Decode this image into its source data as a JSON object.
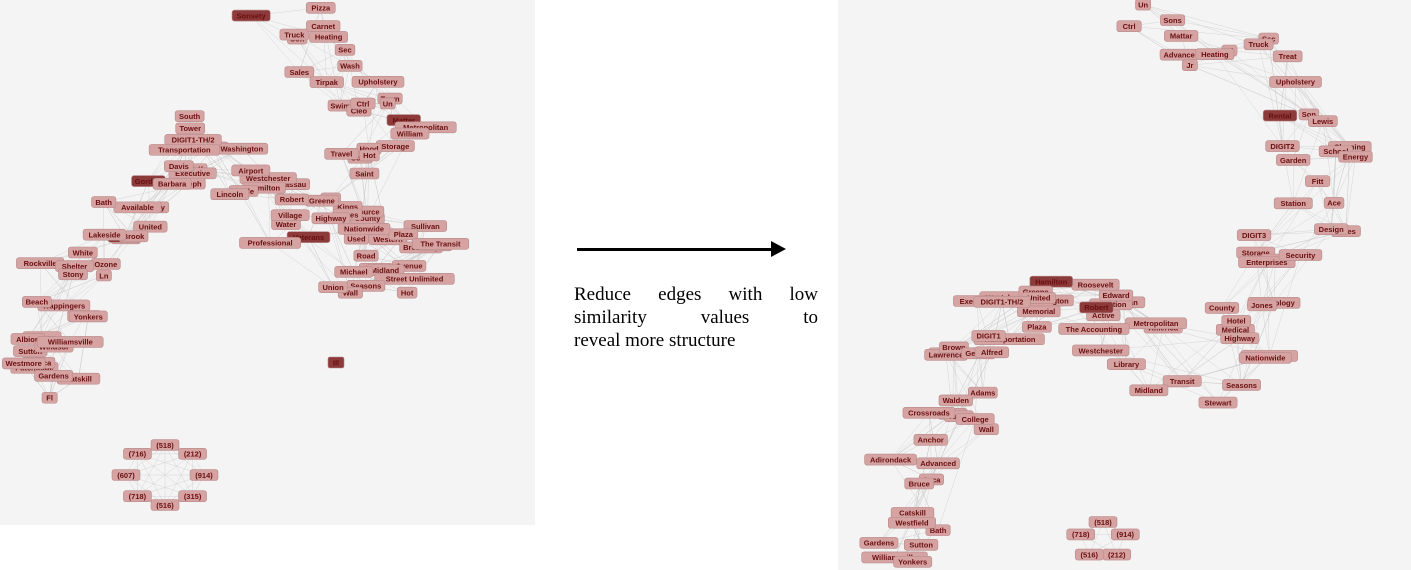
{
  "caption": {
    "line1": "Reduce edges with low",
    "line2": "similarity values to",
    "line3": "reveal more structure"
  },
  "colors": {
    "node_fill": "#d6a3a3",
    "node_fill_dark": "#8c3a3a",
    "node_text": "#6a0f0f",
    "edge": "#c9c9c9",
    "arrow": "#000000"
  },
  "left_graph": {
    "nodes": [
      "Son",
      "Sonsety",
      "Pizza",
      "Truck",
      "Carnet",
      "Sales",
      "Heating",
      "Sec",
      "Tirpak",
      "Wash",
      "Swim",
      "Cleo",
      "Upholstery",
      "Town",
      "Mattar",
      "Ctrl",
      "Un",
      "Metropolitan",
      "Storage",
      "William",
      "Hood",
      "Saint",
      "Sons",
      "Travel",
      "Hot",
      "Old",
      "DIGIT2",
      "County",
      "Resource",
      "Used",
      "Kings",
      "Jones",
      "Western",
      "Road",
      "Sullivan",
      "Plaza",
      "DIGIT1",
      "Avenue",
      "Broadway",
      "Midland",
      "Middle",
      "The Transit",
      "Street Unlimited",
      "Hot",
      "Seasons",
      "Wall",
      "Union",
      "Michael",
      "Nationwide",
      "Highway",
      "Veterans",
      "Water",
      "Village",
      "Greene",
      "Professional",
      "Nassau",
      "Westchester",
      "Hamilton",
      "Robert",
      "Apple",
      "Lincoln",
      "Airport",
      "Woods",
      "Wolf",
      "South",
      "Tower",
      "Washington",
      "DIGIT1-TH/2",
      "Executive",
      "Transportation",
      "Gordon",
      "Davis",
      "Joseph",
      "Anthony",
      "Barbara",
      "Available",
      "United",
      "Bruce",
      "George",
      "Bath",
      "Brook",
      "Lakeside",
      "Ozone",
      "White",
      "Ln",
      "Rockville",
      "Wappingers",
      "Shelter",
      "Stony",
      "Beach",
      "College",
      "Hudson",
      "Yonkers",
      "Albion",
      "Sutton",
      "Patchogue",
      "Windsor",
      "Williamsville",
      "Seneca",
      "Catskill",
      "Westmore",
      "Gardens",
      "Fl"
    ],
    "isolated_node": "Ill",
    "area_codes": [
      "(518)",
      "(212)",
      "(914)",
      "(315)",
      "(516)",
      "(718)",
      "(607)",
      "(716)"
    ]
  },
  "right_graph": {
    "nodes": [
      "Advance",
      "Ctrl",
      "Mattar",
      "Un",
      "Bl",
      "Sons",
      "Jr",
      "Heating",
      "Sec",
      "Truck",
      "Treat",
      "Son",
      "Rental",
      "Upholstery",
      "Lewis",
      "DIGIT2",
      "Cleaning",
      "School",
      "Garden",
      "Station",
      "Energy",
      "Fitt",
      "Ace",
      "Sales",
      "Design",
      "DIGIT3",
      "Storage",
      "World",
      "Enterprises",
      "Security",
      "Technology",
      "County",
      "Medical",
      "Jones",
      "Hotel",
      "Consultants",
      "Nationwide",
      "Seasons",
      "Highway",
      "Stewart",
      "Road",
      "Transit",
      "Midland",
      "America",
      "Library",
      "Westchester",
      "Metropolitan",
      "Sullivan",
      "Junction",
      "The Accounting",
      "Active",
      "Edward",
      "Robert",
      "Roosevelt",
      "Hamilton",
      "Westchester",
      "Plaza",
      "Greene",
      "Memorial",
      "Washington",
      "Transportation",
      "United",
      "Executive",
      "DIGIT1-TH/2",
      "Charles",
      "Lawrence",
      "Brown",
      "George",
      "DIGIT1",
      "Alfred",
      "Adams",
      "Woods",
      "Tower",
      "Wall",
      "Walden",
      "College",
      "Crossroads",
      "Advanced",
      "Adirondack",
      "Anchor",
      "Aaca",
      "Bruce",
      "Bath",
      "Gardens",
      "Catskill",
      "Williamsville",
      "Westfield",
      "Yonkers",
      "Sutton"
    ],
    "area_codes": [
      "(518)",
      "(914)",
      "(212)",
      "(516)",
      "(718)"
    ]
  }
}
